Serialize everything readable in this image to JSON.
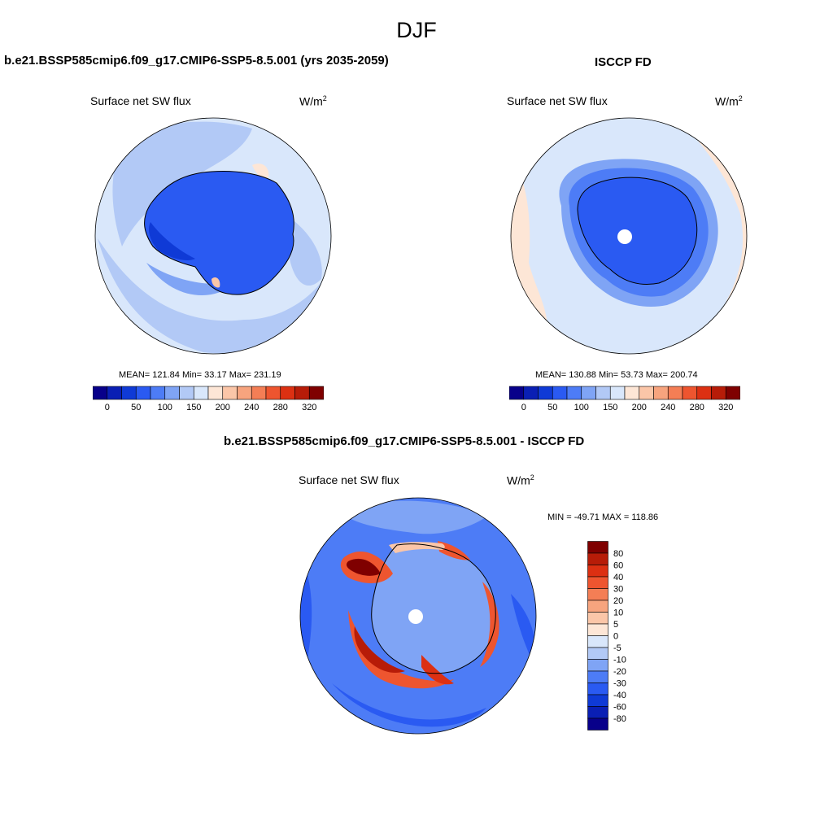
{
  "season": "DJF",
  "panels": {
    "model": {
      "title": "b.e21.BSSP585cmip6.f09_g17.CMIP6-SSP5-8.5.001 (yrs 2035-2059)",
      "variable": "Surface net SW flux",
      "units": "W/m",
      "units_exp": "2",
      "stats": "MEAN= 121.84  Min=  33.17  Max= 231.19"
    },
    "obs": {
      "title": "ISCCP FD",
      "variable": "Surface net SW flux",
      "units": "W/m",
      "units_exp": "2",
      "stats": "MEAN= 130.88  Min=  53.73  Max= 200.74"
    },
    "diff": {
      "title": "b.e21.BSSP585cmip6.f09_g17.CMIP6-SSP5-8.5.001 - ISCCP FD",
      "variable": "Surface net SW flux",
      "units": "W/m",
      "units_exp": "2",
      "stats": "MIN = -49.71 MAX = 118.86"
    }
  },
  "colorbar_top": {
    "colors": [
      "#08008a",
      "#0a1fb4",
      "#0f3ad6",
      "#2a5af2",
      "#4d7cf6",
      "#7fa4f5",
      "#b2c9f6",
      "#d9e7fb",
      "#fde6d6",
      "#fbc6a8",
      "#f7a47e",
      "#f47e55",
      "#ee552f",
      "#dc3012",
      "#b71c08",
      "#7f0000"
    ],
    "tick_labels": [
      "0",
      "50",
      "100",
      "150",
      "200",
      "240",
      "280",
      "320"
    ]
  },
  "colorbar_diff": {
    "colors": [
      "#7f0000",
      "#b71c08",
      "#dc3012",
      "#ee552f",
      "#f47e55",
      "#f7a47e",
      "#fbc6a8",
      "#fde6d6",
      "#d9e7fb",
      "#b2c9f6",
      "#7fa4f5",
      "#4d7cf6",
      "#2a5af2",
      "#0f3ad6",
      "#0a1fb4",
      "#08008a"
    ],
    "tick_labels": [
      "80",
      "60",
      "40",
      "30",
      "20",
      "10",
      "5",
      "0",
      "-5",
      "-10",
      "-20",
      "-30",
      "-40",
      "-60",
      "-80"
    ]
  }
}
